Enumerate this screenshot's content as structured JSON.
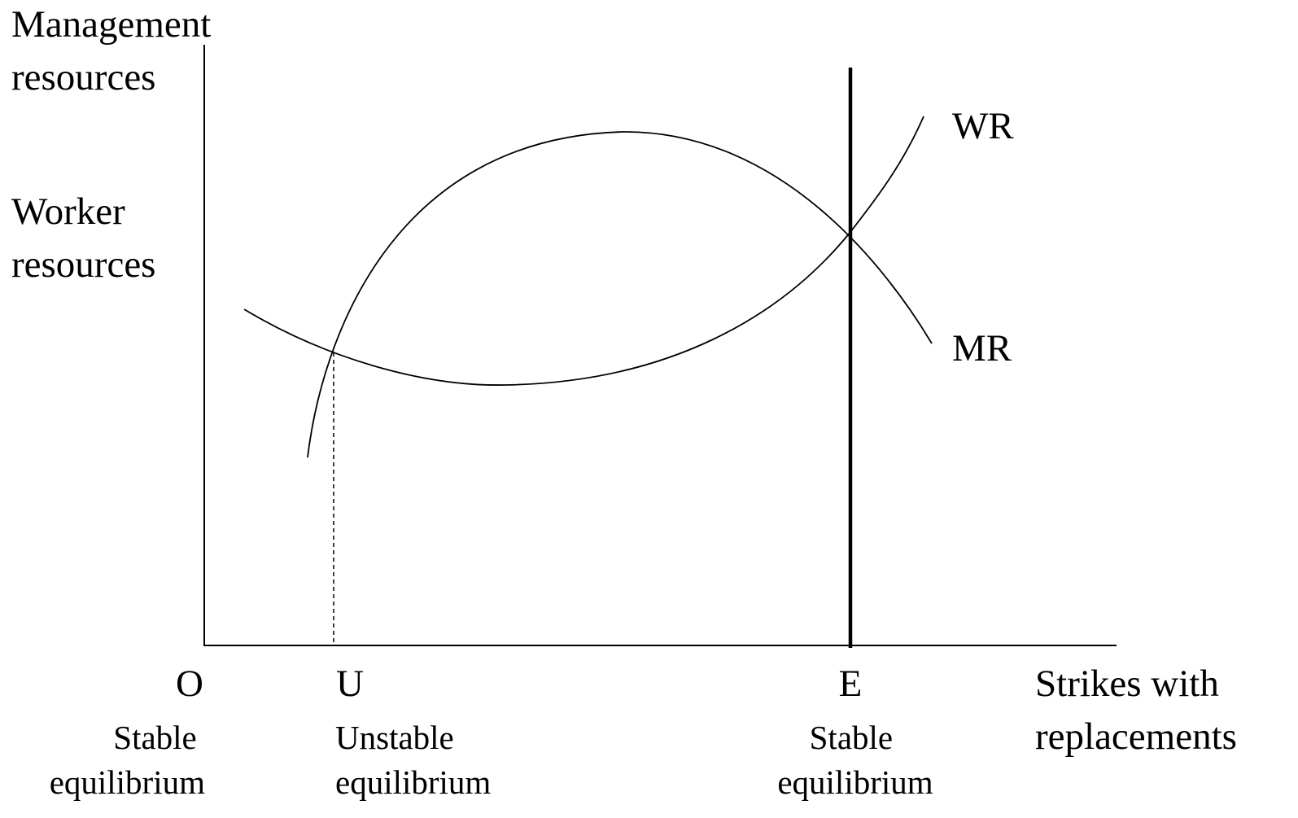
{
  "y_axis_labels": [
    {
      "lines": [
        "Management",
        "resources"
      ]
    },
    {
      "lines": [
        "Worker",
        "resources"
      ]
    }
  ],
  "x_axis_label": {
    "lines": [
      "Strikes with",
      "replacements"
    ]
  },
  "curves": [
    {
      "label": "WR"
    },
    {
      "label": "MR"
    }
  ],
  "points": [
    {
      "label": "O",
      "description": [
        "Stable",
        "equilibrium"
      ]
    },
    {
      "label": "U",
      "description": [
        "Unstable",
        "equilibrium"
      ]
    },
    {
      "label": "E",
      "description": [
        "Stable",
        "equilibrium"
      ]
    }
  ]
}
